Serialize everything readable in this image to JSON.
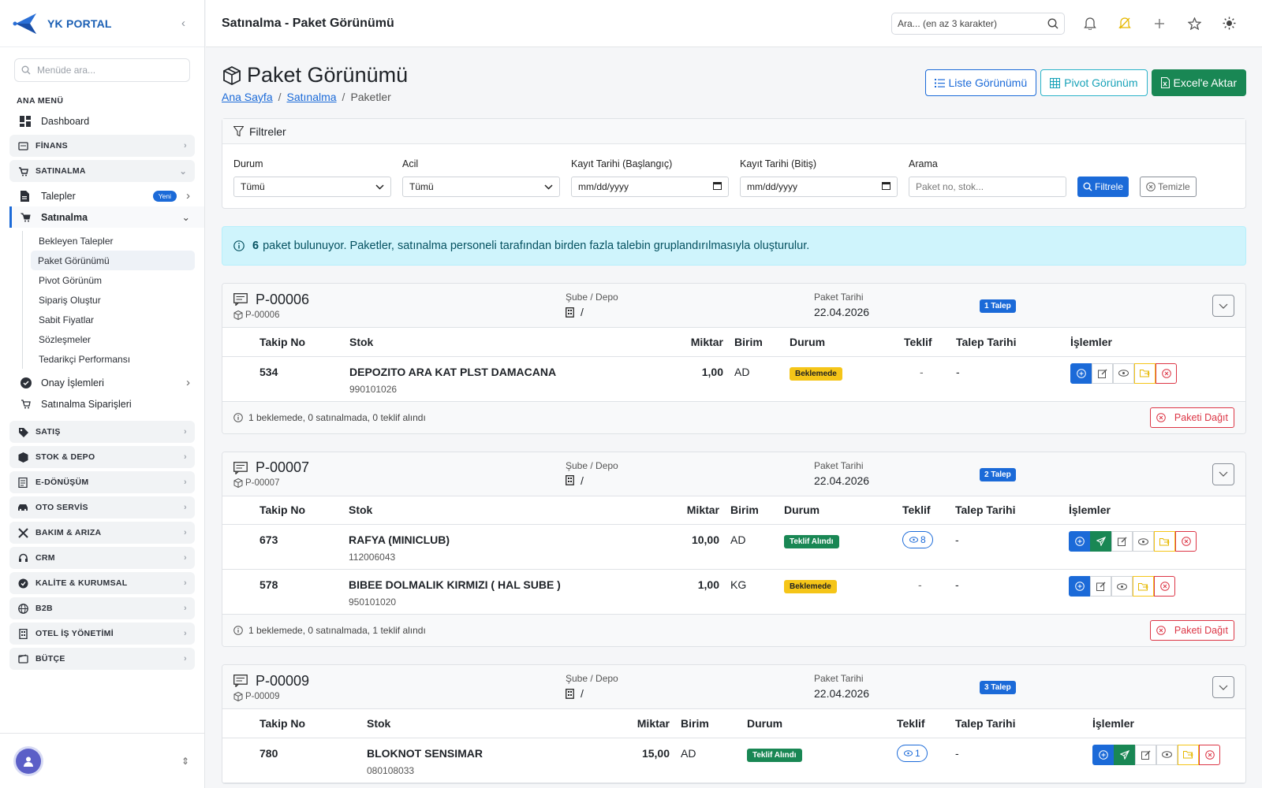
{
  "sidebar": {
    "brand": "YK PORTAL",
    "search_placeholder": "Menüde ara...",
    "menu_header": "ANA MENÜ",
    "dashboard": "Dashboard",
    "sections": {
      "finans": "FİNANS",
      "satinalma": "SATINALMA",
      "satis": "SATIŞ",
      "stok": "STOK & DEPO",
      "edonusum": "E-DÖNÜŞÜM",
      "oto": "OTO SERVİS",
      "bakim": "BAKIM & ARIZA",
      "crm": "CRM",
      "kalite": "KALİTE & KURUMSAL",
      "b2b": "B2B",
      "otel": "OTEL İŞ YÖNETİMİ",
      "butce": "BÜTÇE"
    },
    "talepler": "Talepler",
    "talepler_badge": "Yeni",
    "satinalma_item": "Satınalma",
    "subitems": [
      "Bekleyen Talepler",
      "Paket Görünümü",
      "Pivot Görünüm",
      "Sipariş Oluştur",
      "Sabit Fiyatlar",
      "Sözleşmeler",
      "Tedarikçi Performansı"
    ],
    "onay": "Onay İşlemleri",
    "siparisler": "Satınalma Siparişleri"
  },
  "topbar": {
    "title": "Satınalma - Paket Görünümü",
    "search_placeholder": "Ara... (en az 3 karakter)"
  },
  "page": {
    "title": "Paket Görünümü",
    "breadcrumb": [
      "Ana Sayfa",
      "Satınalma",
      "Paketler"
    ],
    "buttons": {
      "list": "Liste Görünümü",
      "pivot": "Pivot Görünüm",
      "excel": "Excel'e Aktar"
    }
  },
  "filters": {
    "header": "Filtreler",
    "durum_label": "Durum",
    "durum_value": "Tümü",
    "acil_label": "Acil",
    "acil_value": "Tümü",
    "start_label": "Kayıt Tarihi (Başlangıç)",
    "start_value": "mm/dd/yyyy",
    "end_label": "Kayıt Tarihi (Bitiş)",
    "end_value": "mm/dd/yyyy",
    "search_label": "Arama",
    "search_placeholder": "Paket no, stok...",
    "filter_btn": "Filtrele",
    "clear_btn": "Temizle"
  },
  "info": {
    "count": "6",
    "text": "paket bulunuyor. Paketler, satınalma personeli tarafından birden fazla talebin gruplandırılmasıyla oluşturulur."
  },
  "labels": {
    "sube": "Şube / Depo",
    "sube_value": "/",
    "paket_tarihi": "Paket Tarihi",
    "cols": [
      "Takip No",
      "Stok",
      "Miktar",
      "Birim",
      "Durum",
      "Teklif",
      "Talep Tarihi",
      "İşlemler"
    ],
    "dagit": "Paketi Dağıt"
  },
  "packages": [
    {
      "id": "P-00006",
      "sub": "P-00006",
      "date": "22.04.2026",
      "talep": "1 Talep",
      "rows": [
        {
          "takip": "534",
          "stok": "DEPOZITO ARA KAT PLST DAMACANA",
          "kod": "990101026",
          "miktar": "1,00",
          "birim": "AD",
          "durum": "Beklemede",
          "teklif": "-",
          "tarih": "-"
        }
      ],
      "footer": "1 beklemede, 0 satınalmada, 0 teklif alındı"
    },
    {
      "id": "P-00007",
      "sub": "P-00007",
      "date": "22.04.2026",
      "talep": "2 Talep",
      "rows": [
        {
          "takip": "673",
          "stok": "RAFYA (MINICLUB)",
          "kod": "112006043",
          "miktar": "10,00",
          "birim": "AD",
          "durum": "Teklif Alındı",
          "teklif": "8",
          "tarih": "-"
        },
        {
          "takip": "578",
          "stok": "BIBEE DOLMALIK KIRMIZI ( HAL SUBE )",
          "kod": "950101020",
          "miktar": "1,00",
          "birim": "KG",
          "durum": "Beklemede",
          "teklif": "-",
          "tarih": "-"
        }
      ],
      "footer": "1 beklemede, 0 satınalmada, 1 teklif alındı"
    },
    {
      "id": "P-00009",
      "sub": "P-00009",
      "date": "22.04.2026",
      "talep": "3 Talep",
      "rows": [
        {
          "takip": "780",
          "stok": "BLOKNOT SENSIMAR",
          "kod": "080108033",
          "miktar": "15,00",
          "birim": "AD",
          "durum": "Teklif Alındı",
          "teklif": "1",
          "tarih": "-"
        }
      ]
    }
  ]
}
